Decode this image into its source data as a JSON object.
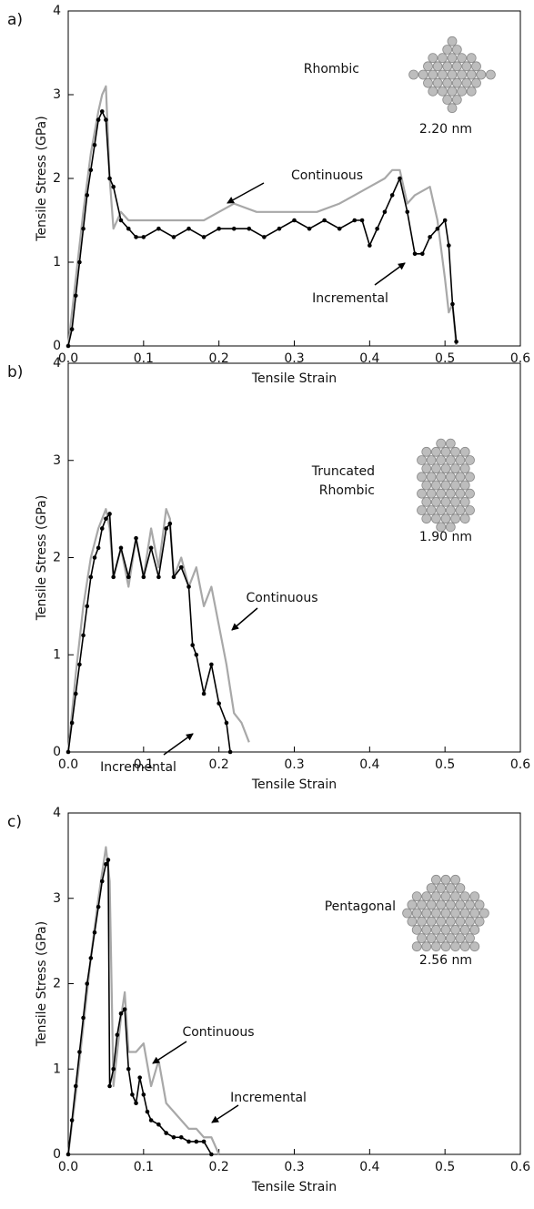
{
  "chart_data": [
    {
      "type": "line",
      "panel_label": "a)",
      "xlabel": "Tensile Strain",
      "ylabel": "Tensile Stress (GPa)",
      "annotations": [
        "Rhombic",
        "2.20 nm",
        "Continuous",
        "Incremental"
      ],
      "xlim": [
        0,
        0.6
      ],
      "ylim": [
        0,
        4
      ],
      "xticks": [
        {
          "value": 0,
          "label": "0.0"
        },
        0.1,
        0.2,
        0.3,
        0.4,
        0.5,
        0.6
      ],
      "yticks": [
        0,
        1,
        2,
        3,
        4
      ],
      "series": [
        {
          "name": "Continuous",
          "color": "#a8a8a8",
          "x": [
            0,
            0.01,
            0.02,
            0.03,
            0.04,
            0.045,
            0.05,
            0.055,
            0.06,
            0.07,
            0.08,
            0.1,
            0.12,
            0.15,
            0.18,
            0.2,
            0.22,
            0.25,
            0.28,
            0.3,
            0.33,
            0.36,
            0.38,
            0.4,
            0.42,
            0.43,
            0.44,
            0.45,
            0.46,
            0.48,
            0.49,
            0.5,
            0.505,
            0.51,
            0.515
          ],
          "values": [
            0,
            0.8,
            1.6,
            2.3,
            2.8,
            3.0,
            3.1,
            2.0,
            1.4,
            1.6,
            1.5,
            1.5,
            1.5,
            1.5,
            1.5,
            1.6,
            1.7,
            1.6,
            1.6,
            1.6,
            1.6,
            1.7,
            1.8,
            1.9,
            2.0,
            2.1,
            2.1,
            1.7,
            1.8,
            1.9,
            1.5,
            0.8,
            0.4,
            0.5,
            0.0
          ]
        },
        {
          "name": "Incremental",
          "color": "#000000",
          "x": [
            0,
            0.005,
            0.01,
            0.015,
            0.02,
            0.025,
            0.03,
            0.035,
            0.04,
            0.045,
            0.05,
            0.055,
            0.06,
            0.07,
            0.08,
            0.09,
            0.1,
            0.12,
            0.14,
            0.16,
            0.18,
            0.2,
            0.22,
            0.24,
            0.26,
            0.28,
            0.3,
            0.32,
            0.34,
            0.36,
            0.38,
            0.39,
            0.4,
            0.41,
            0.42,
            0.43,
            0.44,
            0.45,
            0.46,
            0.47,
            0.48,
            0.49,
            0.5,
            0.505,
            0.51,
            0.515
          ],
          "values": [
            0,
            0.2,
            0.6,
            1.0,
            1.4,
            1.8,
            2.1,
            2.4,
            2.7,
            2.8,
            2.7,
            2.0,
            1.9,
            1.5,
            1.4,
            1.3,
            1.3,
            1.4,
            1.3,
            1.4,
            1.3,
            1.4,
            1.4,
            1.4,
            1.3,
            1.4,
            1.5,
            1.4,
            1.5,
            1.4,
            1.5,
            1.5,
            1.2,
            1.4,
            1.6,
            1.8,
            2.0,
            1.6,
            1.1,
            1.1,
            1.3,
            1.4,
            1.5,
            1.2,
            0.5,
            0.05
          ]
        }
      ]
    },
    {
      "type": "line",
      "panel_label": "b)",
      "xlabel": "Tensile Strain",
      "ylabel": "Tensile Stress (GPa)",
      "annotations": [
        "Truncated",
        "Rhombic",
        "1.90 nm",
        "Continuous",
        "Incremental"
      ],
      "xlim": [
        0,
        0.6
      ],
      "ylim": [
        0,
        4
      ],
      "xticks": [
        {
          "value": 0,
          "label": "0.0"
        },
        0.1,
        0.2,
        0.3,
        0.4,
        0.5,
        0.6
      ],
      "yticks": [
        0,
        1,
        2,
        3,
        4
      ],
      "series": [
        {
          "name": "Continuous",
          "color": "#a8a8a8",
          "x": [
            0,
            0.01,
            0.02,
            0.03,
            0.04,
            0.05,
            0.055,
            0.06,
            0.07,
            0.08,
            0.09,
            0.1,
            0.11,
            0.12,
            0.13,
            0.135,
            0.14,
            0.15,
            0.16,
            0.17,
            0.18,
            0.19,
            0.2,
            0.21,
            0.22,
            0.23,
            0.24
          ],
          "values": [
            0,
            0.8,
            1.5,
            2.0,
            2.3,
            2.5,
            2.3,
            1.8,
            2.1,
            1.7,
            2.2,
            1.8,
            2.3,
            1.9,
            2.5,
            2.4,
            1.8,
            2.0,
            1.7,
            1.9,
            1.5,
            1.7,
            1.3,
            0.9,
            0.4,
            0.3,
            0.1
          ]
        },
        {
          "name": "Incremental",
          "color": "#000000",
          "x": [
            0,
            0.005,
            0.01,
            0.015,
            0.02,
            0.025,
            0.03,
            0.035,
            0.04,
            0.045,
            0.05,
            0.055,
            0.06,
            0.07,
            0.08,
            0.09,
            0.1,
            0.11,
            0.12,
            0.13,
            0.135,
            0.14,
            0.15,
            0.16,
            0.165,
            0.17,
            0.18,
            0.19,
            0.2,
            0.21,
            0.215
          ],
          "values": [
            0,
            0.3,
            0.6,
            0.9,
            1.2,
            1.5,
            1.8,
            2.0,
            2.1,
            2.3,
            2.4,
            2.45,
            1.8,
            2.1,
            1.8,
            2.2,
            1.8,
            2.1,
            1.8,
            2.3,
            2.35,
            1.8,
            1.9,
            1.7,
            1.1,
            1.0,
            0.6,
            0.9,
            0.5,
            0.3,
            0.0
          ]
        }
      ]
    },
    {
      "type": "line",
      "panel_label": "c)",
      "xlabel": "Tensile Strain",
      "ylabel": "Tensile Stress (GPa)",
      "annotations": [
        "Pentagonal",
        "2.56 nm",
        "Continuous",
        "Incremental"
      ],
      "xlim": [
        0,
        0.6
      ],
      "ylim": [
        0,
        4
      ],
      "xticks": [
        {
          "value": 0,
          "label": "0.0"
        },
        0.1,
        0.2,
        0.3,
        0.4,
        0.5,
        0.6
      ],
      "yticks": [
        0,
        1,
        2,
        3,
        4
      ],
      "series": [
        {
          "name": "Continuous",
          "color": "#a8a8a8",
          "x": [
            0,
            0.01,
            0.02,
            0.03,
            0.04,
            0.05,
            0.055,
            0.06,
            0.07,
            0.075,
            0.08,
            0.09,
            0.1,
            0.11,
            0.12,
            0.13,
            0.14,
            0.15,
            0.16,
            0.17,
            0.18,
            0.19,
            0.2
          ],
          "values": [
            0,
            0.7,
            1.5,
            2.3,
            3.0,
            3.6,
            3.2,
            0.8,
            1.6,
            1.9,
            1.2,
            1.2,
            1.3,
            0.8,
            1.1,
            0.6,
            0.5,
            0.4,
            0.3,
            0.3,
            0.2,
            0.2,
            0
          ]
        },
        {
          "name": "Incremental",
          "color": "#000000",
          "x": [
            0,
            0.005,
            0.01,
            0.015,
            0.02,
            0.025,
            0.03,
            0.035,
            0.04,
            0.045,
            0.05,
            0.053,
            0.055,
            0.06,
            0.065,
            0.07,
            0.075,
            0.08,
            0.085,
            0.09,
            0.095,
            0.1,
            0.105,
            0.11,
            0.12,
            0.13,
            0.14,
            0.15,
            0.16,
            0.17,
            0.18,
            0.19
          ],
          "values": [
            0,
            0.4,
            0.8,
            1.2,
            1.6,
            2.0,
            2.3,
            2.6,
            2.9,
            3.2,
            3.4,
            3.45,
            0.8,
            1.0,
            1.4,
            1.65,
            1.7,
            1.0,
            0.7,
            0.6,
            0.9,
            0.7,
            0.5,
            0.4,
            0.35,
            0.25,
            0.2,
            0.2,
            0.15,
            0.15,
            0.15,
            0.0
          ]
        }
      ]
    }
  ]
}
